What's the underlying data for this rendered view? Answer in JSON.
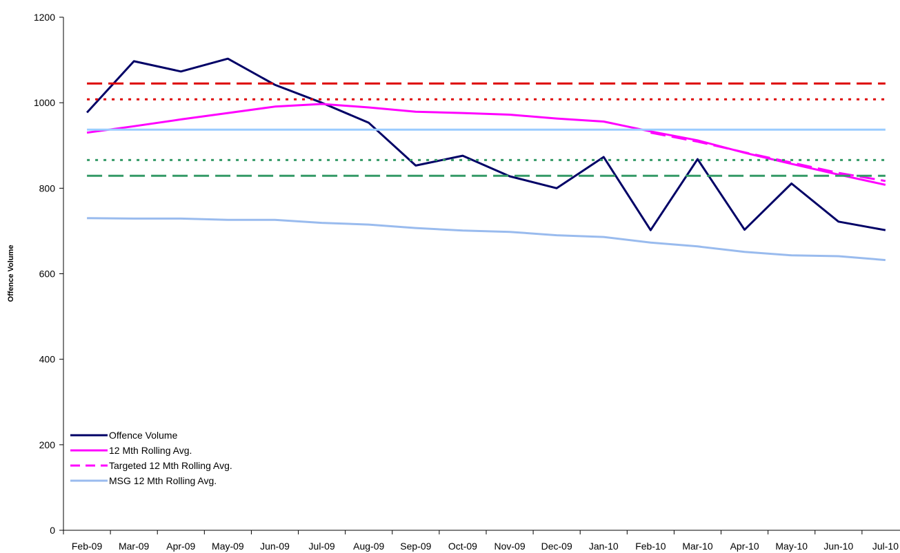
{
  "chart_data": {
    "type": "line",
    "title": "",
    "xlabel": "",
    "ylabel": "Offence Volume",
    "ylim": [
      0,
      1200
    ],
    "yticks": [
      0,
      200,
      400,
      600,
      800,
      1000,
      1200
    ],
    "grid": false,
    "legend_position": "bottom-left",
    "categories": [
      "Feb-09",
      "Mar-09",
      "Apr-09",
      "May-09",
      "Jun-09",
      "Jul-09",
      "Aug-09",
      "Sep-09",
      "Oct-09",
      "Nov-09",
      "Dec-09",
      "Jan-10",
      "Feb-10",
      "Mar-10",
      "Apr-10",
      "May-10",
      "Jun-10",
      "Jul-10"
    ],
    "series": [
      {
        "name": "Offence Volume",
        "color": "#000066",
        "style": "solid",
        "legend": true,
        "values": [
          977,
          1097,
          1073,
          1103,
          1042,
          1000,
          953,
          853,
          876,
          828,
          800,
          873,
          702,
          868,
          703,
          811,
          722,
          702
        ]
      },
      {
        "name": "12 Mth Rolling Avg.",
        "color": "#ff00ff",
        "style": "solid",
        "legend": true,
        "values": [
          930,
          945,
          961,
          976,
          991,
          997,
          989,
          979,
          976,
          972,
          963,
          956,
          933,
          912,
          883,
          857,
          832,
          808
        ]
      },
      {
        "name": "Targeted 12 Mth Rolling Avg.",
        "color": "#ff00ff",
        "style": "dashed",
        "legend": true,
        "values": [
          null,
          null,
          null,
          null,
          null,
          null,
          null,
          null,
          null,
          null,
          null,
          null,
          930,
          909,
          884,
          860,
          836,
          817
        ]
      },
      {
        "name": "MSG 12 Mth Rolling Avg.",
        "color": "#99bbee",
        "style": "solid",
        "legend": true,
        "values": [
          730,
          729,
          729,
          726,
          726,
          719,
          715,
          707,
          701,
          698,
          690,
          686,
          673,
          664,
          651,
          643,
          641,
          632
        ]
      },
      {
        "name": "",
        "color": "#99ccff",
        "style": "solid",
        "legend": false,
        "values": [
          937,
          937,
          937,
          937,
          937,
          937,
          937,
          937,
          937,
          937,
          937,
          937,
          937,
          937,
          937,
          937,
          937,
          937
        ]
      },
      {
        "name": "",
        "color": "#dd0000",
        "style": "dashed",
        "legend": false,
        "values": [
          1045,
          1045,
          1045,
          1045,
          1045,
          1045,
          1045,
          1045,
          1045,
          1045,
          1045,
          1045,
          1045,
          1045,
          1045,
          1045,
          1045,
          1045
        ]
      },
      {
        "name": "",
        "color": "#dd0000",
        "style": "dotted",
        "legend": false,
        "values": [
          1008,
          1008,
          1008,
          1008,
          1008,
          1008,
          1008,
          1008,
          1008,
          1008,
          1008,
          1008,
          1008,
          1008,
          1008,
          1008,
          1008,
          1008
        ]
      },
      {
        "name": "",
        "color": "#339966",
        "style": "dotted",
        "legend": false,
        "values": [
          866,
          866,
          866,
          866,
          866,
          866,
          866,
          866,
          866,
          866,
          866,
          866,
          866,
          866,
          866,
          866,
          866,
          866
        ]
      },
      {
        "name": "",
        "color": "#339966",
        "style": "dashed",
        "legend": false,
        "values": [
          829,
          829,
          829,
          829,
          829,
          829,
          829,
          829,
          829,
          829,
          829,
          829,
          829,
          829,
          829,
          829,
          829,
          829
        ]
      }
    ]
  }
}
